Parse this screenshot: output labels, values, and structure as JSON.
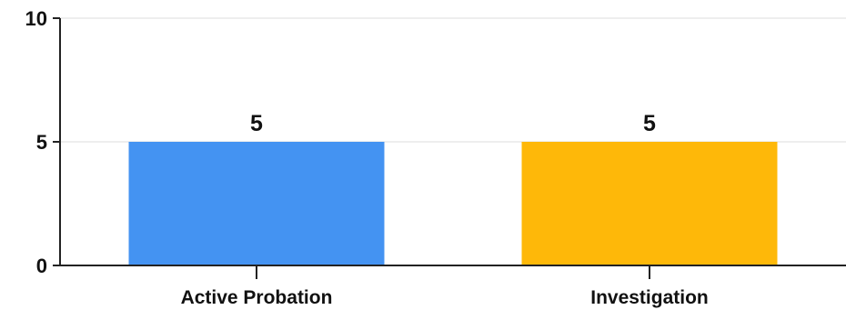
{
  "chart_data": {
    "type": "bar",
    "categories": [
      "Active Probation",
      "Investigation"
    ],
    "values": [
      5,
      5
    ],
    "data_labels": [
      "5",
      "5"
    ],
    "title": "",
    "xlabel": "",
    "ylabel": "",
    "ylim": [
      0,
      10
    ],
    "yticks": [
      0,
      5,
      10
    ],
    "ytick_labels": [
      "0",
      "5",
      "10"
    ],
    "grid": true,
    "legend": "none",
    "colors": [
      "#4493f2",
      "#feb809"
    ]
  }
}
